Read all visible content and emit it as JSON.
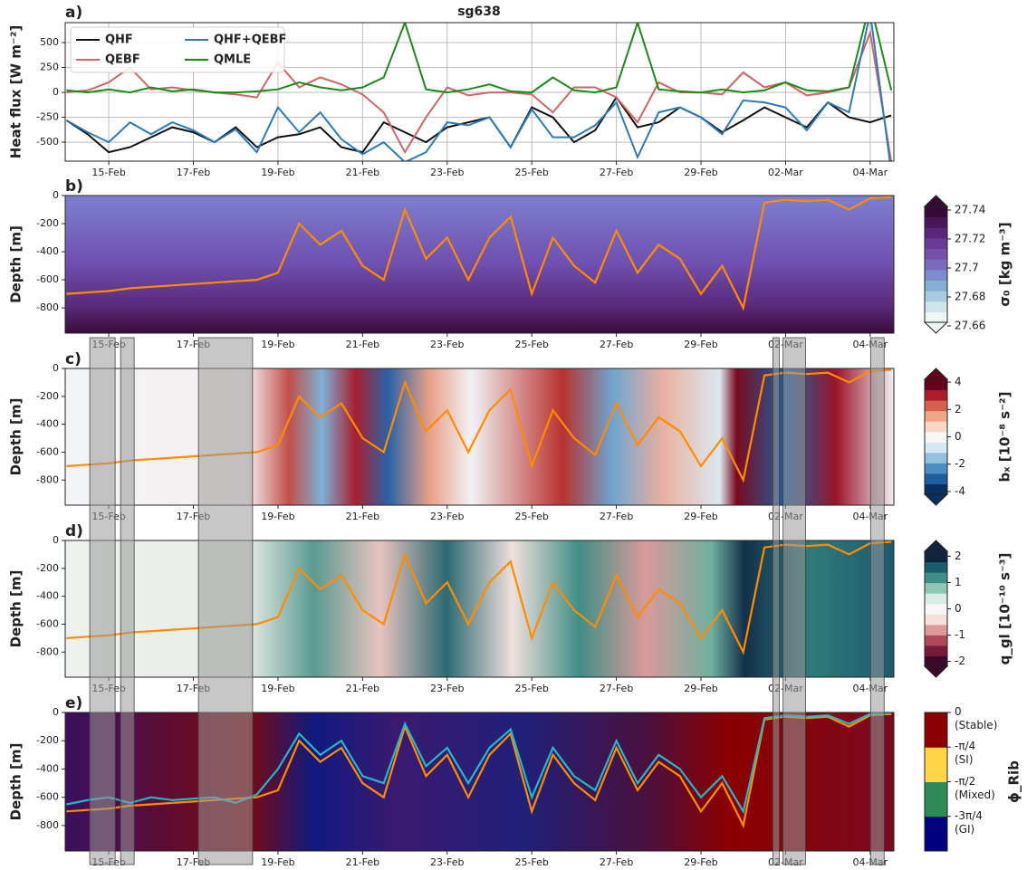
{
  "chart_data": [
    {
      "type": "line",
      "panel_label": "a)",
      "title": "sg638",
      "ylabel": "Heat flux [W m⁻²]",
      "x": [
        14,
        14.5,
        15,
        15.5,
        16,
        16.5,
        17,
        17.5,
        18,
        18.5,
        19,
        19.5,
        20,
        20.5,
        21,
        21.5,
        22,
        22.5,
        23,
        23.5,
        24,
        24.5,
        25,
        25.5,
        26,
        26.5,
        27,
        27.5,
        28,
        28.5,
        29,
        29.5,
        30,
        30.5,
        31,
        31.5,
        32,
        32.5,
        33,
        33.5
      ],
      "xlim": [
        13.97,
        33.56
      ],
      "xticks": [
        {
          "value": 15,
          "label": "15-Feb"
        },
        {
          "value": 17,
          "label": "17-Feb"
        },
        {
          "value": 19,
          "label": "19-Feb"
        },
        {
          "value": 21,
          "label": "21-Feb"
        },
        {
          "value": 23,
          "label": "23-Feb"
        },
        {
          "value": 25,
          "label": "25-Feb"
        },
        {
          "value": 27,
          "label": "27-Feb"
        },
        {
          "value": 29,
          "label": "29-Feb"
        },
        {
          "value": 31,
          "label": "02-Mar"
        },
        {
          "value": 33,
          "label": "04-Mar"
        }
      ],
      "ylim": [
        -690,
        700
      ],
      "yticks": [
        500,
        250,
        0,
        -250,
        -500
      ],
      "grid": true,
      "legend": "upper left",
      "series": [
        {
          "name": "QHF",
          "color": "#111111",
          "values": [
            -280,
            -420,
            -600,
            -550,
            -450,
            -350,
            -400,
            -500,
            -350,
            -550,
            -450,
            -420,
            -350,
            -550,
            -600,
            -300,
            -400,
            -500,
            -350,
            -300,
            -250,
            -550,
            -150,
            -250,
            -500,
            -380,
            -50,
            -350,
            -300,
            -150,
            -250,
            -400,
            -280,
            -150,
            -250,
            -350,
            -100,
            -250,
            -300,
            -230
          ]
        },
        {
          "name": "QEBF",
          "color": "#d26464",
          "values": [
            0,
            20,
            100,
            250,
            30,
            50,
            20,
            0,
            -20,
            -50,
            300,
            50,
            150,
            80,
            -20,
            -200,
            -600,
            -250,
            50,
            -30,
            0,
            0,
            -20,
            -200,
            50,
            50,
            -50,
            -300,
            100,
            0,
            0,
            -20,
            200,
            50,
            100,
            -30,
            0,
            50,
            600,
            -700
          ]
        },
        {
          "name": "QHF+QEBF",
          "color": "#2b7bba",
          "values": [
            -280,
            -400,
            -500,
            -300,
            -420,
            -300,
            -380,
            -500,
            -370,
            -600,
            -150,
            -400,
            -200,
            -470,
            -620,
            -500,
            -700,
            -600,
            -300,
            -330,
            -250,
            -550,
            -170,
            -450,
            -450,
            -330,
            -100,
            -650,
            -200,
            -150,
            -250,
            -420,
            -80,
            -100,
            -150,
            -380,
            -100,
            -200,
            800,
            -800
          ]
        },
        {
          "name": "QMLE",
          "color": "#1a8a1a",
          "values": [
            20,
            0,
            30,
            0,
            50,
            10,
            30,
            0,
            0,
            10,
            30,
            100,
            50,
            20,
            50,
            150,
            700,
            30,
            0,
            30,
            80,
            10,
            0,
            150,
            20,
            0,
            50,
            700,
            30,
            10,
            0,
            30,
            0,
            20,
            100,
            20,
            10,
            50,
            900,
            20
          ]
        }
      ]
    },
    {
      "type": "depth",
      "panel_label": "b)",
      "ylabel": "Depth [m]",
      "x": [
        14,
        14.5,
        15,
        15.5,
        16,
        16.5,
        17,
        17.5,
        18,
        18.5,
        19,
        19.5,
        20,
        20.5,
        21,
        21.5,
        22,
        22.5,
        23,
        23.5,
        24,
        24.5,
        25,
        25.5,
        26,
        26.5,
        27,
        27.5,
        28,
        28.5,
        29,
        29.5,
        30,
        30.5,
        31,
        31.5,
        32,
        32.5,
        33,
        33.5
      ],
      "xlim": [
        13.97,
        33.56
      ],
      "xticks": [
        {
          "value": 15,
          "label": "15-Feb"
        },
        {
          "value": 17,
          "label": "17-Feb"
        },
        {
          "value": 19,
          "label": "19-Feb"
        },
        {
          "value": 21,
          "label": "21-Feb"
        },
        {
          "value": 23,
          "label": "23-Feb"
        },
        {
          "value": 25,
          "label": "25-Feb"
        },
        {
          "value": 27,
          "label": "27-Feb"
        },
        {
          "value": 29,
          "label": "29-Feb"
        },
        {
          "value": 31,
          "label": "02-Mar"
        },
        {
          "value": 33,
          "label": "04-Mar"
        }
      ],
      "ylim": [
        -980,
        0
      ],
      "yticks": [
        0,
        -200,
        -400,
        -600,
        -800
      ],
      "series": [
        {
          "color": "#ff8c00",
          "values": [
            -700,
            -690,
            -680,
            -660,
            -650,
            -640,
            -630,
            -620,
            -610,
            -600,
            -550,
            -200,
            -350,
            -250,
            -500,
            -600,
            -100,
            -450,
            -300,
            -600,
            -300,
            -150,
            -700,
            -300,
            -500,
            -620,
            -250,
            -550,
            -350,
            -450,
            -700,
            -500,
            -800,
            -50,
            -30,
            -40,
            -30,
            -100,
            -20,
            -10
          ]
        }
      ],
      "colorbar": {
        "label": "σ₀ [kg m⁻³]",
        "lim": [
          27.655,
          27.75
        ],
        "ticks": [
          27.66,
          27.68,
          27.7,
          27.72,
          27.74
        ],
        "colors": [
          "#eef6f4",
          "#cfe4ea",
          "#a8cbe0",
          "#86aed5",
          "#7a8ccb",
          "#7a6cbd",
          "#7552a9",
          "#6a3c95",
          "#5a2679",
          "#481659",
          "#360a36"
        ]
      }
    },
    {
      "type": "depth",
      "panel_label": "c)",
      "ylabel": "Depth [m]",
      "x": [
        14,
        14.5,
        15,
        15.5,
        16,
        16.5,
        17,
        17.5,
        18,
        18.5,
        19,
        19.5,
        20,
        20.5,
        21,
        21.5,
        22,
        22.5,
        23,
        23.5,
        24,
        24.5,
        25,
        25.5,
        26,
        26.5,
        27,
        27.5,
        28,
        28.5,
        29,
        29.5,
        30,
        30.5,
        31,
        31.5,
        32,
        32.5,
        33,
        33.5
      ],
      "xlim": [
        13.97,
        33.56
      ],
      "xticks": [
        {
          "value": 15,
          "label": "15-Feb"
        },
        {
          "value": 17,
          "label": "17-Feb"
        },
        {
          "value": 19,
          "label": "19-Feb"
        },
        {
          "value": 21,
          "label": "21-Feb"
        },
        {
          "value": 23,
          "label": "23-Feb"
        },
        {
          "value": 25,
          "label": "25-Feb"
        },
        {
          "value": 27,
          "label": "27-Feb"
        },
        {
          "value": 29,
          "label": "29-Feb"
        },
        {
          "value": 31,
          "label": "02-Mar"
        },
        {
          "value": 33,
          "label": "04-Mar"
        }
      ],
      "ylim": [
        -980,
        0
      ],
      "yticks": [
        0,
        -200,
        -400,
        -600,
        -800
      ],
      "series": [
        {
          "color": "#ff8c00",
          "values": [
            -700,
            -690,
            -680,
            -660,
            -650,
            -640,
            -630,
            -620,
            -610,
            -600,
            -550,
            -200,
            -350,
            -250,
            -500,
            -600,
            -100,
            -450,
            -300,
            -600,
            -300,
            -150,
            -700,
            -300,
            -500,
            -620,
            -250,
            -550,
            -350,
            -450,
            -700,
            -500,
            -800,
            -50,
            -30,
            -40,
            -30,
            -100,
            -20,
            -10
          ]
        }
      ],
      "colorbar": {
        "label": "bₓ [10⁻⁸ s⁻²]",
        "lim": [
          -5,
          5
        ],
        "ticks": [
          4,
          2,
          0,
          -2,
          -4
        ],
        "colors": [
          "#0b2f5e",
          "#1f5fa0",
          "#4a8fc2",
          "#93c2de",
          "#d6e8f2",
          "#f7f7f7",
          "#f7d8c8",
          "#f0a585",
          "#d5604c",
          "#ad1c2d",
          "#67001f"
        ]
      }
    },
    {
      "type": "depth",
      "panel_label": "d)",
      "ylabel": "Depth [m]",
      "x": [
        14,
        14.5,
        15,
        15.5,
        16,
        16.5,
        17,
        17.5,
        18,
        18.5,
        19,
        19.5,
        20,
        20.5,
        21,
        21.5,
        22,
        22.5,
        23,
        23.5,
        24,
        24.5,
        25,
        25.5,
        26,
        26.5,
        27,
        27.5,
        28,
        28.5,
        29,
        29.5,
        30,
        30.5,
        31,
        31.5,
        32,
        32.5,
        33,
        33.5
      ],
      "xlim": [
        13.97,
        33.56
      ],
      "xticks": [
        {
          "value": 15,
          "label": "15-Feb"
        },
        {
          "value": 17,
          "label": "17-Feb"
        },
        {
          "value": 19,
          "label": "19-Feb"
        },
        {
          "value": 21,
          "label": "21-Feb"
        },
        {
          "value": 23,
          "label": "23-Feb"
        },
        {
          "value": 25,
          "label": "25-Feb"
        },
        {
          "value": 27,
          "label": "27-Feb"
        },
        {
          "value": 29,
          "label": "29-Feb"
        },
        {
          "value": 31,
          "label": "02-Mar"
        },
        {
          "value": 33,
          "label": "04-Mar"
        }
      ],
      "ylim": [
        -980,
        0
      ],
      "yticks": [
        0,
        -200,
        -400,
        -600,
        -800
      ],
      "series": [
        {
          "color": "#ff8c00",
          "values": [
            -700,
            -690,
            -680,
            -660,
            -650,
            -640,
            -630,
            -620,
            -610,
            -600,
            -550,
            -200,
            -350,
            -250,
            -500,
            -600,
            -100,
            -450,
            -300,
            -600,
            -300,
            -150,
            -700,
            -300,
            -500,
            -620,
            -250,
            -550,
            -350,
            -450,
            -700,
            -500,
            -800,
            -50,
            -30,
            -40,
            -30,
            -100,
            -20,
            -10
          ]
        }
      ],
      "colorbar": {
        "label": "q_gl [10⁻¹⁰ s⁻³]",
        "lim": [
          -2.6,
          2.6
        ],
        "ticks": [
          2,
          1,
          0,
          -1,
          -2
        ],
        "colors": [
          "#3a0a2a",
          "#7a1a3a",
          "#b04a5a",
          "#dd9a9a",
          "#f5e0dc",
          "#f8f6f4",
          "#d6ece4",
          "#8fc6b4",
          "#3f8f86",
          "#1c5a6e",
          "#10243e"
        ]
      }
    },
    {
      "type": "depth",
      "panel_label": "e)",
      "ylabel": "Depth [m]",
      "x": [
        14,
        14.5,
        15,
        15.5,
        16,
        16.5,
        17,
        17.5,
        18,
        18.5,
        19,
        19.5,
        20,
        20.5,
        21,
        21.5,
        22,
        22.5,
        23,
        23.5,
        24,
        24.5,
        25,
        25.5,
        26,
        26.5,
        27,
        27.5,
        28,
        28.5,
        29,
        29.5,
        30,
        30.5,
        31,
        31.5,
        32,
        32.5,
        33,
        33.5
      ],
      "xlim": [
        13.97,
        33.56
      ],
      "xticks": [
        {
          "value": 15,
          "label": "15-Feb"
        },
        {
          "value": 17,
          "label": "17-Feb"
        },
        {
          "value": 19,
          "label": "19-Feb"
        },
        {
          "value": 21,
          "label": "21-Feb"
        },
        {
          "value": 23,
          "label": "23-Feb"
        },
        {
          "value": 25,
          "label": "25-Feb"
        },
        {
          "value": 27,
          "label": "27-Feb"
        },
        {
          "value": 29,
          "label": "29-Feb"
        },
        {
          "value": 31,
          "label": "02-Mar"
        },
        {
          "value": 33,
          "label": "04-Mar"
        }
      ],
      "ylim": [
        -980,
        0
      ],
      "yticks": [
        0,
        -200,
        -400,
        -600,
        -800
      ],
      "series": [
        {
          "color": "#ff8c00",
          "values": [
            -700,
            -690,
            -680,
            -660,
            -650,
            -640,
            -630,
            -620,
            -610,
            -600,
            -550,
            -200,
            -350,
            -250,
            -500,
            -600,
            -100,
            -450,
            -300,
            -600,
            -300,
            -150,
            -700,
            -300,
            -500,
            -620,
            -250,
            -550,
            -350,
            -450,
            -700,
            -500,
            -800,
            -50,
            -30,
            -40,
            -30,
            -100,
            -20,
            -10
          ]
        },
        {
          "color": "#22b8c8",
          "values": [
            -650,
            -620,
            -600,
            -640,
            -600,
            -620,
            -610,
            -600,
            -640,
            -580,
            -400,
            -150,
            -300,
            -200,
            -450,
            -500,
            -80,
            -380,
            -250,
            -500,
            -250,
            -120,
            -600,
            -250,
            -450,
            -550,
            -200,
            -500,
            -300,
            -400,
            -600,
            -450,
            -700,
            -40,
            -20,
            -30,
            -20,
            -80,
            -10,
            -5
          ]
        }
      ],
      "colorbar": {
        "label": "ϕ_Rib",
        "lim": [
          -3.1416,
          0
        ],
        "ticks": [
          {
            "value": 0,
            "label": "0\n(Stable)"
          },
          {
            "value": -0.7854,
            "label": "-π/4\n(SI)"
          },
          {
            "value": -1.5708,
            "label": "-π/2\n(Mixed)"
          },
          {
            "value": -2.3562,
            "label": "-3π/4\n(GI)"
          }
        ],
        "colors": [
          "#000080",
          "#2e8b57",
          "#ffd447",
          "#8b0000"
        ]
      }
    }
  ],
  "shaded_periods": [
    [
      14.55,
      15.15
    ],
    [
      15.28,
      15.6
    ],
    [
      17.12,
      18.4
    ],
    [
      30.7,
      30.85
    ],
    [
      30.94,
      31.47
    ],
    [
      33.01,
      33.33
    ]
  ]
}
